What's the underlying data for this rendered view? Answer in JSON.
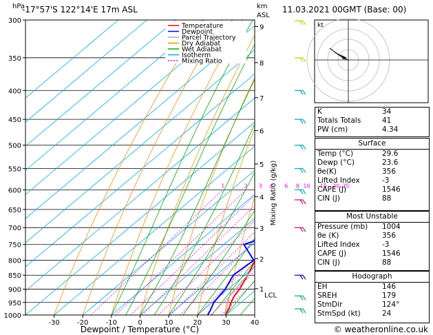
{
  "header": {
    "location": "-17°57'S  122°14'E  17m  ASL",
    "run": "11.03.2021  00GMT  (Base: 00)",
    "hpa_label": "hPa",
    "km_label": "km",
    "asl_label": "ASL",
    "mixing_axis_label": "Mixing Ratio (g/kg)",
    "xlabel": "Dewpoint / Temperature (°C)",
    "footer": "© weatheronline.co.uk"
  },
  "legend": {
    "items": [
      {
        "label": "Temperature",
        "color": "#ff0000",
        "dash": ""
      },
      {
        "label": "Dewpoint",
        "color": "#0000ff",
        "dash": ""
      },
      {
        "label": "Parcel Trajectory",
        "color": "#aaaaaa",
        "dash": ""
      },
      {
        "label": "Dry Adiabat",
        "color": "#ff8c00",
        "dash": ""
      },
      {
        "label": "Wet Adiabat",
        "color": "#00aa00",
        "dash": ""
      },
      {
        "label": "Isotherm",
        "color": "#00aaff",
        "dash": ""
      },
      {
        "label": "Mixing Ratio",
        "color": "#ff00ff",
        "dash": "2,2"
      }
    ]
  },
  "chart_data": {
    "type": "line",
    "pressure_levels": [
      300,
      350,
      400,
      450,
      500,
      550,
      600,
      650,
      700,
      750,
      800,
      850,
      900,
      950,
      1000
    ],
    "pressure_labels": [
      "300",
      "350",
      "400",
      "450",
      "500",
      "550",
      "600",
      "650",
      "700",
      "750",
      "800",
      "850",
      "900",
      "950",
      "1000"
    ],
    "x_ticks": [
      -30,
      -20,
      -10,
      0,
      10,
      20,
      30,
      40
    ],
    "x_tick_labels": [
      "-30",
      "-20",
      "-10",
      "0",
      "10",
      "20",
      "30",
      "40"
    ],
    "km_ticks": [
      {
        "label": "9",
        "p": 308
      },
      {
        "label": "8",
        "p": 357
      },
      {
        "label": "7",
        "p": 412
      },
      {
        "label": "6",
        "p": 471
      },
      {
        "label": "5",
        "p": 540
      },
      {
        "label": "4",
        "p": 617
      },
      {
        "label": "3",
        "p": 702
      },
      {
        "label": "2",
        "p": 795
      },
      {
        "label": "1",
        "p": 898
      }
    ],
    "lcl": {
      "label": "LCL",
      "p": 920
    },
    "mixing_ratio_labels": [
      "1",
      "2",
      "3",
      "4",
      "6",
      "8",
      "10",
      "15",
      "20",
      "25"
    ],
    "mixing_ratio_values": [
      1,
      2,
      3,
      4,
      6,
      8,
      10,
      15,
      20,
      25
    ],
    "series": [
      {
        "name": "Temperature",
        "color": "#ff0000",
        "points": [
          [
            1000,
            29.6
          ],
          [
            975,
            28.5
          ],
          [
            950,
            26.5
          ],
          [
            925,
            25.0
          ],
          [
            900,
            24.0
          ],
          [
            850,
            21.0
          ],
          [
            800,
            17.5
          ],
          [
            750,
            14.0
          ],
          [
            700,
            11.0
          ],
          [
            650,
            7.5
          ],
          [
            600,
            4.5
          ],
          [
            550,
            1.5
          ],
          [
            525,
            0.5
          ],
          [
            500,
            -3.0
          ],
          [
            450,
            -9.0
          ],
          [
            400,
            -15.5
          ],
          [
            350,
            -23.0
          ],
          [
            325,
            -27.0
          ]
        ]
      },
      {
        "name": "Dewpoint",
        "color": "#0000ff",
        "points": [
          [
            1000,
            23.6
          ],
          [
            980,
            22.5
          ],
          [
            950,
            20.5
          ],
          [
            900,
            19.0
          ],
          [
            850,
            16.0
          ],
          [
            820,
            16.5
          ],
          [
            800,
            17.0
          ],
          [
            750,
            7.0
          ],
          [
            720,
            13.0
          ],
          [
            700,
            14.0
          ],
          [
            680,
            10.0
          ],
          [
            650,
            3.0
          ],
          [
            630,
            4.0
          ],
          [
            600,
            -8.0
          ],
          [
            580,
            5.5
          ],
          [
            560,
            3.0
          ],
          [
            525,
            2.0
          ],
          [
            510,
            -2.0
          ],
          [
            500,
            -2.0
          ],
          [
            460,
            -3.0
          ],
          [
            445,
            -34.0
          ],
          [
            430,
            -10.0
          ],
          [
            410,
            -13.0
          ],
          [
            400,
            -32.0
          ],
          [
            390,
            -20.0
          ],
          [
            385,
            -42.0
          ],
          [
            370,
            -12.0
          ],
          [
            350,
            -10.0
          ],
          [
            330,
            -12.0
          ],
          [
            310,
            -17.0
          ],
          [
            300,
            -22.0
          ]
        ]
      },
      {
        "name": "Parcel Trajectory",
        "color": "#aaaaaa",
        "points": [
          [
            1000,
            29.6
          ],
          [
            950,
            25.0
          ],
          [
            920,
            23.0
          ],
          [
            900,
            22.5
          ],
          [
            850,
            21.0
          ],
          [
            800,
            19.0
          ],
          [
            750,
            17.0
          ],
          [
            700,
            14.5
          ],
          [
            650,
            12.0
          ],
          [
            600,
            9.0
          ],
          [
            550,
            6.0
          ],
          [
            500,
            2.0
          ],
          [
            450,
            -2.5
          ],
          [
            400,
            -8.0
          ],
          [
            350,
            -14.5
          ],
          [
            320,
            -19.0
          ]
        ]
      }
    ],
    "xlim": [
      -40,
      40
    ],
    "ylim": [
      1000,
      300
    ]
  },
  "hodograph": {
    "label": "kt"
  },
  "indices": {
    "top": [
      {
        "label": "K",
        "value": "34"
      },
      {
        "label": "Totals Totals",
        "value": "41"
      },
      {
        "label": "PW (cm)",
        "value": "4.34"
      }
    ],
    "surface": {
      "title": "Surface",
      "rows": [
        {
          "label": "Temp (°C)",
          "value": "29.6"
        },
        {
          "label": "Dewp (°C)",
          "value": "23.6"
        },
        {
          "label": "θe(K)",
          "value": "356"
        },
        {
          "label": "Lifted Index",
          "value": "-3"
        },
        {
          "label": "CAPE (J)",
          "value": "1546"
        },
        {
          "label": "CIN (J)",
          "value": "88"
        }
      ]
    },
    "unstable": {
      "title": "Most Unstable",
      "rows": [
        {
          "label": "Pressure (mb)",
          "value": "1004"
        },
        {
          "label": "θe (K)",
          "value": "356"
        },
        {
          "label": "Lifted Index",
          "value": "-3"
        },
        {
          "label": "CAPE (J)",
          "value": "1546"
        },
        {
          "label": "CIN (J)",
          "value": "88"
        }
      ]
    },
    "hodo": {
      "title": "Hodograph",
      "rows": [
        {
          "label": "EH",
          "value": "146"
        },
        {
          "label": "SREH",
          "value": "179"
        },
        {
          "label": "StmDir",
          "value": "124°"
        },
        {
          "label": "StmSpd (kt)",
          "value": "24"
        }
      ]
    }
  },
  "colors": {
    "temperature": "#ff0000",
    "dewpoint": "#0000ff",
    "parcel": "#aaaaaa",
    "dry_adiabat": "#ff8c00",
    "wet_adiabat": "#00aa00",
    "isotherm": "#00aaff",
    "mixing_ratio": "#ff00ff"
  }
}
